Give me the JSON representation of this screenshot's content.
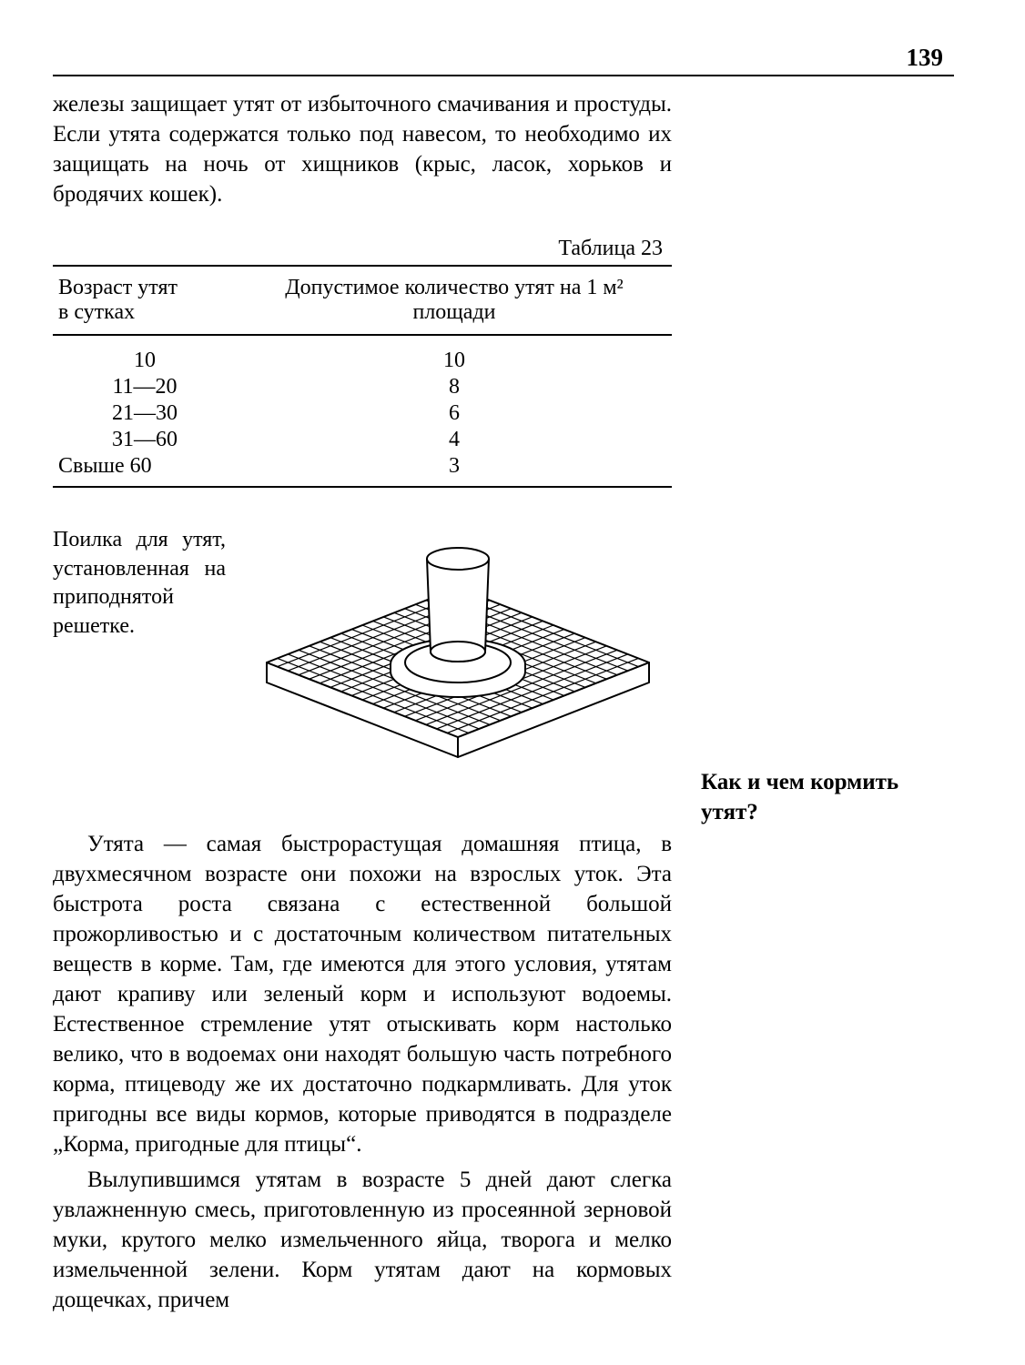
{
  "page_number": "139",
  "top_paragraph": "железы защищает утят от избыточного смачивания и простуды. Если утята содержатся только под навесом, то необходимо их защищать на ночь от хищников (крыс, ласок, хорьков и бродячих кошек).",
  "table": {
    "caption": "Таблица 23",
    "head_col1_line1": "Возраст утят",
    "head_col1_line2": "в сутках",
    "head_col2": "Допустимое количество утят на 1 м² площади",
    "rows": [
      {
        "c1": "10",
        "c2": "10"
      },
      {
        "c1": "11—20",
        "c2": "8"
      },
      {
        "c1": "21—30",
        "c2": "6"
      },
      {
        "c1": "31—60",
        "c2": "4"
      },
      {
        "c1": "Свыше 60",
        "c2": "3"
      }
    ]
  },
  "figure_caption": "Поилка для утят, установленная на приподнятой решетке.",
  "margin_heading": "Как и чем кормить утят?",
  "para2": "Утята — самая быстрорастущая домашняя птица, в двухмесячном возрасте они похожи на взрослых уток. Эта быстрота роста связана с естественной большой прожорливостью и с достаточным количеством питательных веществ в корме. Там, где имеются для этого условия, утятам дают крапиву или зеленый корм и используют водоемы. Естественное стремление утят отыскивать корм настолько велико, что в водоемах они находят большую часть потребного корма, птицеводу же их достаточно подкармливать. Для уток пригодны все виды кормов, которые приводятся в подразделе „Корма, пригодные для птицы“.",
  "para3": "Вылупившимся утятам в возрасте 5 дней дают слегка увлажненную смесь, приготовленную из просеянной зерновой муки, крутого мелко измельченного яйца, творога и мелко измельченной зелени. Корм утятам дают на кормовых дощечках, причем",
  "svg": {
    "stroke": "#000000",
    "stroke_width": 2,
    "grid_n": 18
  }
}
